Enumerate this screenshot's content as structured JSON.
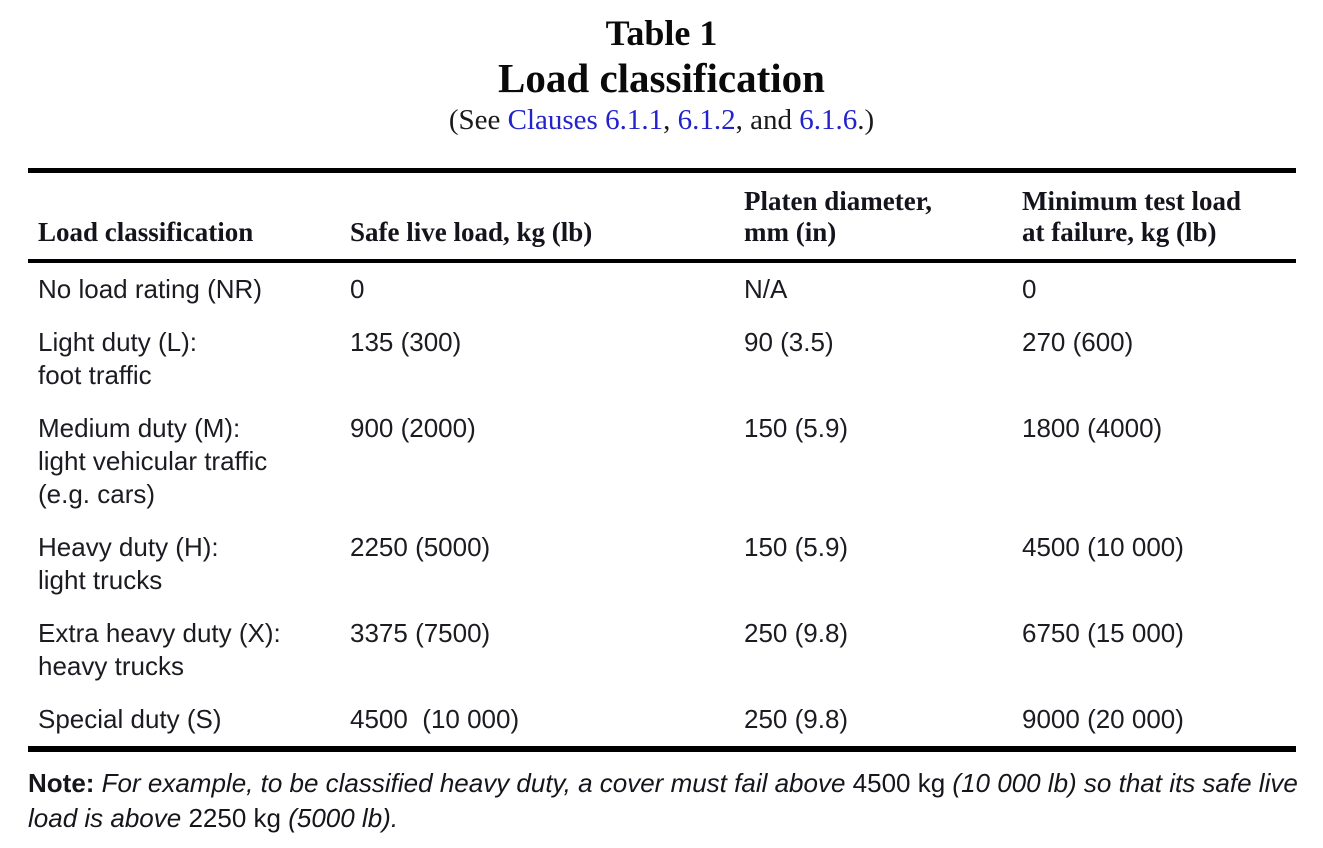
{
  "colors": {
    "link": "#2323cc",
    "text": "#1b1b22",
    "rule": "#000000",
    "background": "#ffffff"
  },
  "title": {
    "line1": "Table 1",
    "line2": "Load classification"
  },
  "subtitle": {
    "segments": [
      {
        "text": "(See ",
        "link": false
      },
      {
        "text": "Clauses 6.1.1",
        "link": true
      },
      {
        "text": ", ",
        "link": false
      },
      {
        "text": "6.1.2",
        "link": true
      },
      {
        "text": ", and ",
        "link": false
      },
      {
        "text": "6.1.6",
        "link": true
      },
      {
        "text": ".)",
        "link": false
      }
    ]
  },
  "table": {
    "columns": [
      {
        "lines": [
          "Load classification"
        ]
      },
      {
        "lines": [
          "Safe live load, kg (lb)"
        ]
      },
      {
        "lines": [
          "Platen diameter,",
          "mm (in)"
        ]
      },
      {
        "lines": [
          "Minimum test load",
          "at failure, kg (lb)"
        ]
      }
    ],
    "rows": [
      {
        "classification": [
          "No load rating (NR)"
        ],
        "safe_live_load": "0",
        "platen_diameter": "N/A",
        "min_test_load": "0"
      },
      {
        "classification": [
          "Light duty (L):",
          "foot traffic"
        ],
        "safe_live_load": "135 (300)",
        "platen_diameter": "90 (3.5)",
        "min_test_load": "270 (600)"
      },
      {
        "classification": [
          "Medium duty (M):",
          "light vehicular traffic",
          "(e.g. cars)"
        ],
        "safe_live_load": "900 (2000)",
        "platen_diameter": "150 (5.9)",
        "min_test_load": "1800 (4000)"
      },
      {
        "classification": [
          "Heavy duty (H):",
          "light trucks"
        ],
        "safe_live_load": "2250 (5000)",
        "platen_diameter": "150 (5.9)",
        "min_test_load": "4500 (10 000)"
      },
      {
        "classification": [
          "Extra heavy duty (X):",
          "heavy trucks"
        ],
        "safe_live_load": "3375 (7500)",
        "platen_diameter": "250 (9.8)",
        "min_test_load": "6750 (15 000)"
      },
      {
        "classification": [
          "Special duty (S)"
        ],
        "safe_live_load": "4500  (10 000)",
        "platen_diameter": "250 (9.8)",
        "min_test_load": "9000 (20 000)"
      }
    ]
  },
  "note": {
    "segments": [
      {
        "text": "Note:",
        "style": "bold"
      },
      {
        "text": " For example, to be classified heavy duty, a cover must fail above ",
        "style": "italic"
      },
      {
        "text": "4500 kg ",
        "style": "regular"
      },
      {
        "text": "(10 000 lb) so that its safe live load is above ",
        "style": "italic"
      },
      {
        "text": "2250 kg ",
        "style": "regular"
      },
      {
        "text": "(5000 lb).",
        "style": "italic"
      }
    ]
  }
}
